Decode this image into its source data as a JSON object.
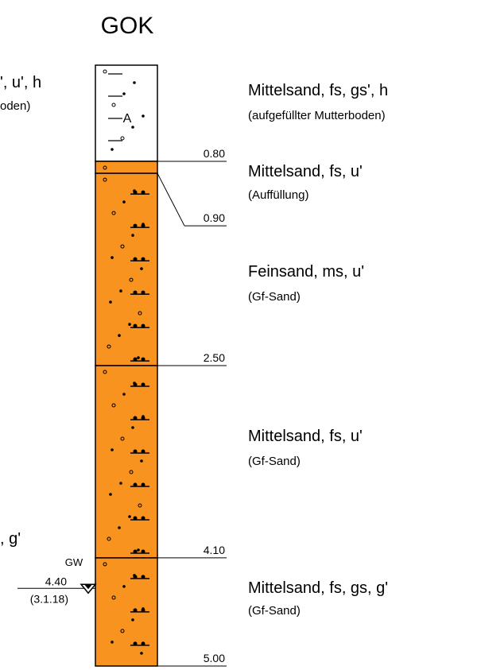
{
  "title": "GOK",
  "depth_max": 5.0,
  "layers": [
    {
      "name": "Mittelsand, fs, gs', h",
      "note": "(aufgefüllter Mutterboden)",
      "bottom": {
        "value": 0.8,
        "label": "0.80"
      },
      "color": "#ffffff"
    },
    {
      "name": "Mittelsand, fs, u'",
      "note": "(Auffüllung)",
      "bottom": {
        "value": 0.9,
        "label": "0.90"
      },
      "color": "#f7931e"
    },
    {
      "name": "Feinsand, ms, u'",
      "note": "(Gf-Sand)",
      "bottom": {
        "value": 2.5,
        "label": "2.50"
      },
      "color": "#f7931e"
    },
    {
      "name": "Mittelsand, fs, u'",
      "note": "(Gf-Sand)",
      "bottom": {
        "value": 4.1,
        "label": "4.10"
      },
      "color": "#f7931e"
    },
    {
      "name": "Mittelsand, fs, gs, g'",
      "note": "(Gf-Sand)",
      "bottom": {
        "value": 5,
        "label": "5.00"
      },
      "color": "#f7931e"
    }
  ],
  "groundwater": {
    "label": "GW",
    "depth": {
      "value": 4.4,
      "label": "4.40"
    },
    "date": "(3.1.18)"
  },
  "left_fragments": [
    "', u', h",
    "oden)",
    ", g'"
  ]
}
